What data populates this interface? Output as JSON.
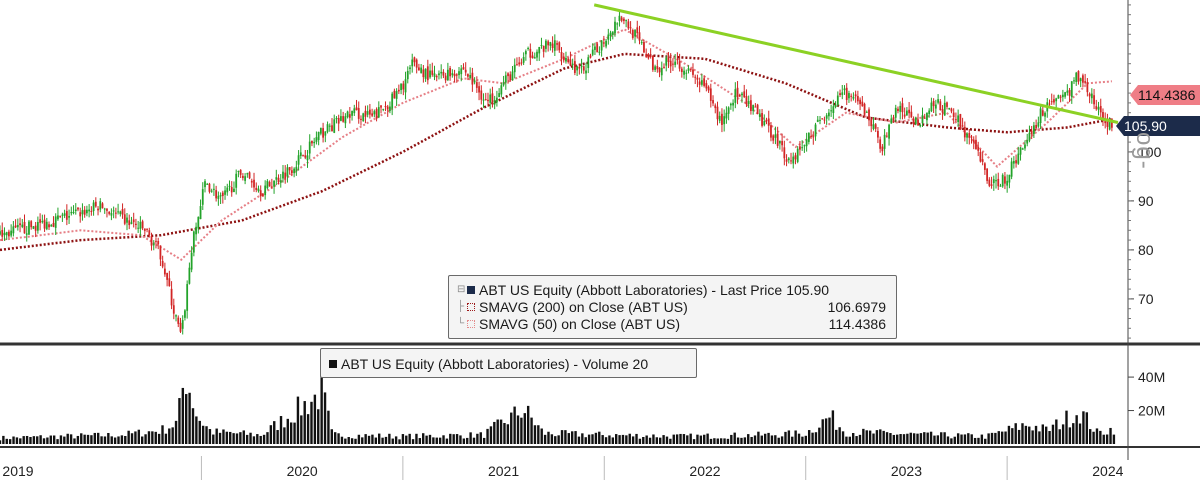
{
  "chart_data": {
    "type": "line",
    "ticker": "ABT US Equity (Abbott Laboratories)",
    "x_labels": [
      "2019",
      "2020",
      "2021",
      "2022",
      "2023",
      "2024"
    ],
    "y_ticks": [
      70,
      80,
      90,
      100
    ],
    "y_range": [
      61,
      131
    ],
    "volume_ticks": [
      "20M",
      "40M"
    ],
    "volume_range_millions": [
      0,
      55
    ],
    "last_price": 105.9,
    "price_series": [
      {
        "t": 0.0,
        "v": 83
      },
      {
        "t": 0.18,
        "v": 85
      },
      {
        "t": 0.35,
        "v": 87
      },
      {
        "t": 0.5,
        "v": 89
      },
      {
        "t": 0.62,
        "v": 86
      },
      {
        "t": 0.72,
        "v": 84
      },
      {
        "t": 0.8,
        "v": 79
      },
      {
        "t": 0.86,
        "v": 68
      },
      {
        "t": 0.9,
        "v": 62
      },
      {
        "t": 0.95,
        "v": 80
      },
      {
        "t": 1.02,
        "v": 94
      },
      {
        "t": 1.1,
        "v": 90
      },
      {
        "t": 1.2,
        "v": 96
      },
      {
        "t": 1.3,
        "v": 92
      },
      {
        "t": 1.45,
        "v": 97
      },
      {
        "t": 1.6,
        "v": 104
      },
      {
        "t": 1.75,
        "v": 108
      },
      {
        "t": 1.85,
        "v": 107
      },
      {
        "t": 1.98,
        "v": 112
      },
      {
        "t": 2.05,
        "v": 118
      },
      {
        "t": 2.15,
        "v": 115
      },
      {
        "t": 2.3,
        "v": 117
      },
      {
        "t": 2.42,
        "v": 110
      },
      {
        "t": 2.5,
        "v": 114
      },
      {
        "t": 2.62,
        "v": 120
      },
      {
        "t": 2.75,
        "v": 122
      },
      {
        "t": 2.88,
        "v": 116
      },
      {
        "t": 3.0,
        "v": 123
      },
      {
        "t": 3.08,
        "v": 128
      },
      {
        "t": 3.15,
        "v": 124
      },
      {
        "t": 3.25,
        "v": 117
      },
      {
        "t": 3.35,
        "v": 119
      },
      {
        "t": 3.5,
        "v": 113
      },
      {
        "t": 3.58,
        "v": 106
      },
      {
        "t": 3.65,
        "v": 112
      },
      {
        "t": 3.75,
        "v": 108
      },
      {
        "t": 3.85,
        "v": 103
      },
      {
        "t": 3.92,
        "v": 98
      },
      {
        "t": 4.0,
        "v": 102
      },
      {
        "t": 4.1,
        "v": 108
      },
      {
        "t": 4.2,
        "v": 112
      },
      {
        "t": 4.3,
        "v": 108
      },
      {
        "t": 4.38,
        "v": 101
      },
      {
        "t": 4.45,
        "v": 109
      },
      {
        "t": 4.55,
        "v": 106
      },
      {
        "t": 4.65,
        "v": 110
      },
      {
        "t": 4.75,
        "v": 107
      },
      {
        "t": 4.85,
        "v": 100
      },
      {
        "t": 4.92,
        "v": 93
      },
      {
        "t": 5.0,
        "v": 95
      },
      {
        "t": 5.1,
        "v": 103
      },
      {
        "t": 5.2,
        "v": 110
      },
      {
        "t": 5.3,
        "v": 112
      },
      {
        "t": 5.36,
        "v": 116
      },
      {
        "t": 5.42,
        "v": 111
      },
      {
        "t": 5.48,
        "v": 106
      },
      {
        "t": 5.52,
        "v": 105.9
      }
    ],
    "sma200_series": [
      {
        "t": 0.0,
        "v": 80
      },
      {
        "t": 0.4,
        "v": 82
      },
      {
        "t": 0.8,
        "v": 83
      },
      {
        "t": 1.2,
        "v": 86
      },
      {
        "t": 1.6,
        "v": 92
      },
      {
        "t": 2.0,
        "v": 100
      },
      {
        "t": 2.4,
        "v": 109
      },
      {
        "t": 2.8,
        "v": 117
      },
      {
        "t": 3.1,
        "v": 120
      },
      {
        "t": 3.5,
        "v": 119
      },
      {
        "t": 3.9,
        "v": 114
      },
      {
        "t": 4.3,
        "v": 107
      },
      {
        "t": 4.7,
        "v": 105
      },
      {
        "t": 5.0,
        "v": 104
      },
      {
        "t": 5.3,
        "v": 105
      },
      {
        "t": 5.52,
        "v": 106.7
      }
    ],
    "sma50_series": [
      {
        "t": 0.0,
        "v": 82
      },
      {
        "t": 0.4,
        "v": 84
      },
      {
        "t": 0.7,
        "v": 83
      },
      {
        "t": 0.9,
        "v": 78
      },
      {
        "t": 1.1,
        "v": 86
      },
      {
        "t": 1.4,
        "v": 94
      },
      {
        "t": 1.7,
        "v": 103
      },
      {
        "t": 2.0,
        "v": 110
      },
      {
        "t": 2.3,
        "v": 115
      },
      {
        "t": 2.5,
        "v": 114
      },
      {
        "t": 2.8,
        "v": 119
      },
      {
        "t": 3.1,
        "v": 125
      },
      {
        "t": 3.4,
        "v": 118
      },
      {
        "t": 3.7,
        "v": 110
      },
      {
        "t": 3.95,
        "v": 101
      },
      {
        "t": 4.2,
        "v": 108
      },
      {
        "t": 4.45,
        "v": 106
      },
      {
        "t": 4.7,
        "v": 108
      },
      {
        "t": 4.95,
        "v": 97
      },
      {
        "t": 5.2,
        "v": 106
      },
      {
        "t": 5.4,
        "v": 114
      },
      {
        "t": 5.52,
        "v": 114.4
      }
    ],
    "trendline": [
      {
        "t": 2.95,
        "v": 130
      },
      {
        "t": 5.55,
        "v": 106
      }
    ],
    "volume_series_millions": [
      {
        "t": 0.0,
        "v": 4
      },
      {
        "t": 0.3,
        "v": 5
      },
      {
        "t": 0.6,
        "v": 6
      },
      {
        "t": 0.8,
        "v": 9
      },
      {
        "t": 0.88,
        "v": 14
      },
      {
        "t": 0.92,
        "v": 47
      },
      {
        "t": 0.98,
        "v": 18
      },
      {
        "t": 1.05,
        "v": 8
      },
      {
        "t": 1.3,
        "v": 6
      },
      {
        "t": 1.6,
        "v": 34
      },
      {
        "t": 1.65,
        "v": 6
      },
      {
        "t": 2.0,
        "v": 5
      },
      {
        "t": 2.4,
        "v": 6
      },
      {
        "t": 2.6,
        "v": 23
      },
      {
        "t": 2.7,
        "v": 7
      },
      {
        "t": 3.0,
        "v": 6
      },
      {
        "t": 3.4,
        "v": 5
      },
      {
        "t": 3.8,
        "v": 6
      },
      {
        "t": 4.0,
        "v": 7
      },
      {
        "t": 4.12,
        "v": 18
      },
      {
        "t": 4.2,
        "v": 8
      },
      {
        "t": 4.6,
        "v": 6
      },
      {
        "t": 4.9,
        "v": 5
      },
      {
        "t": 5.1,
        "v": 13
      },
      {
        "t": 5.2,
        "v": 9
      },
      {
        "t": 5.36,
        "v": 22
      },
      {
        "t": 5.45,
        "v": 7
      },
      {
        "t": 5.52,
        "v": 10
      }
    ]
  },
  "legend": {
    "line1_label": "ABT US Equity (Abbott Laboratories)  - Last Price",
    "line1_value": "105.90",
    "line2_label": "SMAVG (200)  on Close (ABT US)",
    "line2_value": "106.6979",
    "line3_label": "SMAVG (50)  on Close (ABT US)",
    "line3_value": "114.4386"
  },
  "volume_legend": {
    "label": "ABT US Equity (Abbott Laboratories)  - Volume 20"
  },
  "price_flags": {
    "sma50": "114.4386",
    "last": "105.90"
  },
  "watermark": "og-",
  "colors": {
    "up": "#23a32a",
    "down": "#d22525",
    "sma200": "#8e1212",
    "sma50": "#e67f86",
    "trend": "#8cd124",
    "sma50_flag": "#ef7d86",
    "last_flag": "#1c2b4a"
  }
}
